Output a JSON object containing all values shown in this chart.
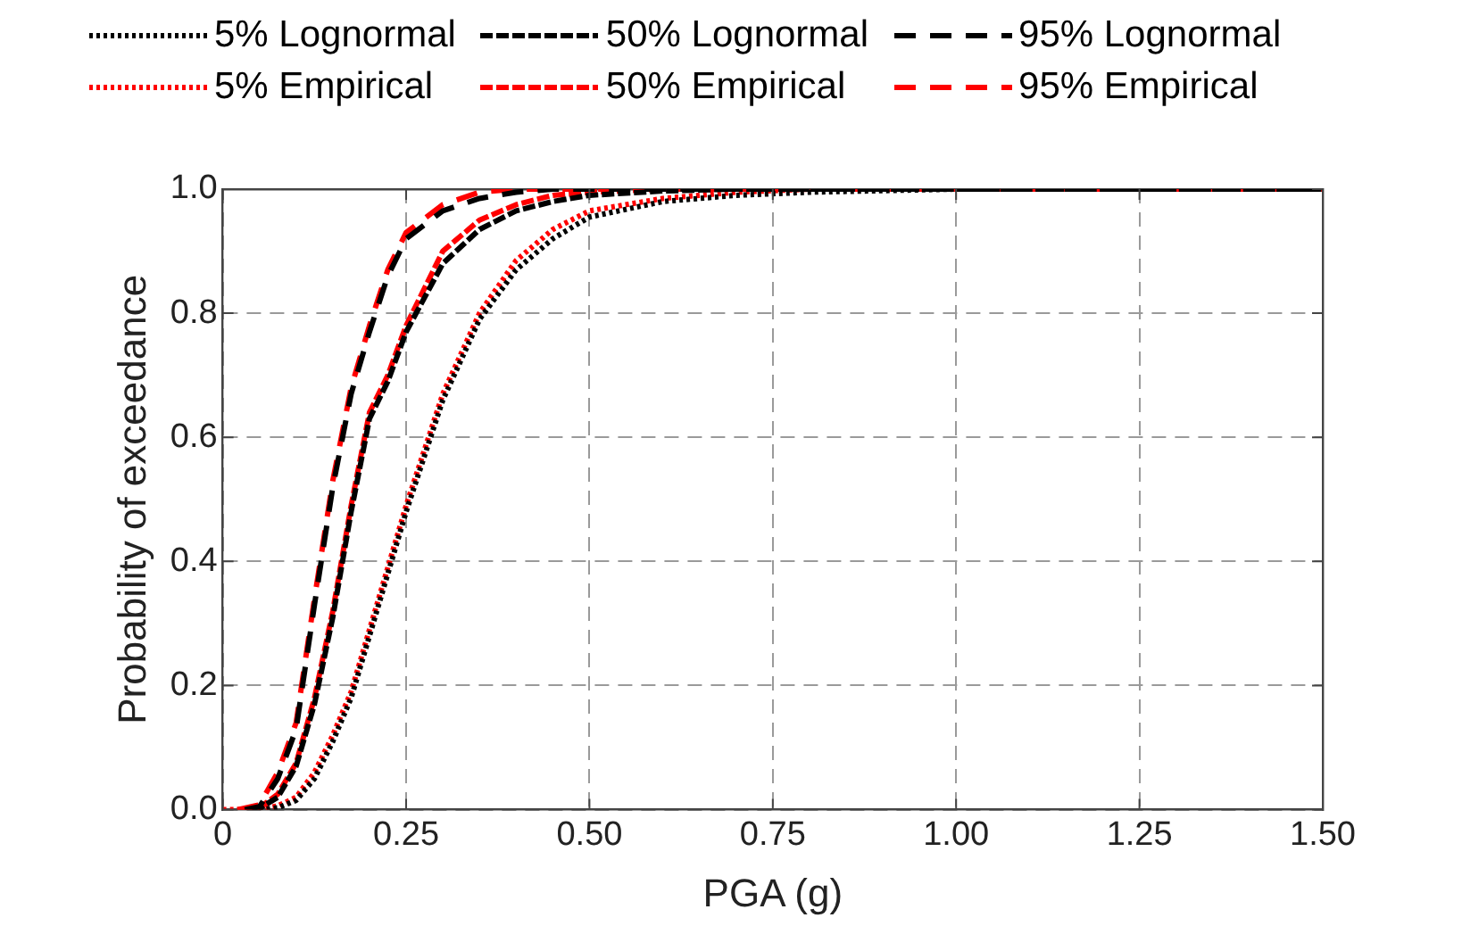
{
  "chart_data": {
    "type": "line",
    "xlabel": "PGA (g)",
    "ylabel": "Probability of exceedance",
    "xlim": [
      0,
      1.5
    ],
    "ylim": [
      0,
      1
    ],
    "xticks": [
      0,
      {
        "value": 0.25,
        "label": "0.25"
      },
      {
        "value": 0.5,
        "label": "0.50"
      },
      {
        "value": 0.75,
        "label": "0.75"
      },
      {
        "value": 1,
        "label": "1.00"
      },
      {
        "value": 1.25,
        "label": "1.25"
      },
      {
        "value": 1.5,
        "label": "1.50"
      }
    ],
    "yticks": [
      {
        "value": 0,
        "label": "0.0"
      },
      {
        "value": 0.2,
        "label": "0.2"
      },
      {
        "value": 0.4,
        "label": "0.4"
      },
      {
        "value": 0.6,
        "label": "0.6"
      },
      {
        "value": 0.8,
        "label": "0.8"
      },
      {
        "value": 1,
        "label": "1.0"
      }
    ],
    "grid": true,
    "legend": "top",
    "marker": "none",
    "x": [
      0,
      0.025,
      0.05,
      0.075,
      0.1,
      0.125,
      0.15,
      0.175,
      0.2,
      0.225,
      0.25,
      0.3,
      0.35,
      0.4,
      0.45,
      0.5,
      0.6,
      0.7,
      0.8,
      1.0,
      1.25,
      1.5
    ],
    "series": [
      {
        "name": "5% Lognormal",
        "color": "#000000",
        "line_style": "dotted",
        "x": [
          0.05,
          0.075,
          0.1,
          0.125,
          0.15,
          0.175,
          0.2,
          0.225,
          0.25,
          0.3,
          0.35,
          0.4,
          0.45,
          0.5,
          0.6,
          0.7,
          0.8,
          1.0,
          1.25,
          1.5
        ],
        "values": [
          0,
          0.003,
          0.015,
          0.05,
          0.11,
          0.18,
          0.28,
          0.38,
          0.48,
          0.66,
          0.79,
          0.87,
          0.92,
          0.955,
          0.98,
          0.99,
          0.995,
          1,
          1,
          1
        ]
      },
      {
        "name": "50% Lognormal",
        "color": "#000000",
        "line_style": "dashed",
        "x": [
          0.04,
          0.05,
          0.075,
          0.1,
          0.125,
          0.15,
          0.175,
          0.2,
          0.225,
          0.25,
          0.3,
          0.35,
          0.4,
          0.45,
          0.5,
          0.6,
          0.7,
          0.8,
          1.0,
          1.25,
          1.5
        ],
        "values": [
          0,
          0.002,
          0.02,
          0.07,
          0.17,
          0.31,
          0.48,
          0.63,
          0.69,
          0.77,
          0.88,
          0.935,
          0.965,
          0.98,
          0.99,
          0.997,
          1,
          1,
          1,
          1,
          1
        ]
      },
      {
        "name": "95% Lognormal",
        "color": "#000000",
        "line_style": "dashed",
        "x": [
          0.03,
          0.05,
          0.075,
          0.1,
          0.125,
          0.15,
          0.175,
          0.2,
          0.225,
          0.25,
          0.3,
          0.35,
          0.4,
          0.45,
          0.5,
          0.6,
          0.7,
          0.8,
          1.0,
          1.25,
          1.5
        ],
        "values": [
          0,
          0.005,
          0.05,
          0.13,
          0.33,
          0.52,
          0.67,
          0.77,
          0.86,
          0.92,
          0.965,
          0.985,
          0.995,
          1,
          1,
          1,
          1,
          1,
          1,
          1,
          1
        ]
      },
      {
        "name": "5% Empirical",
        "color": "#ff0000",
        "line_style": "dotted",
        "values": [
          0,
          0,
          0.001,
          0.006,
          0.02,
          0.06,
          0.12,
          0.19,
          0.29,
          0.39,
          0.49,
          0.67,
          0.8,
          0.885,
          0.935,
          0.965,
          0.985,
          0.995,
          1,
          1,
          1,
          1
        ]
      },
      {
        "name": "50% Empirical",
        "color": "#ff0000",
        "line_style": "dashed",
        "x": [
          0.025,
          0.05,
          0.075,
          0.1,
          0.125,
          0.15,
          0.175,
          0.2,
          0.225,
          0.25,
          0.3,
          0.35,
          0.4,
          0.45,
          0.5,
          0.6,
          0.7,
          0.8,
          1.0,
          1.25,
          1.5
        ],
        "values": [
          0,
          0.003,
          0.025,
          0.075,
          0.18,
          0.32,
          0.49,
          0.64,
          0.7,
          0.78,
          0.9,
          0.95,
          0.975,
          0.99,
          0.995,
          1,
          1,
          1,
          1,
          1,
          1
        ]
      },
      {
        "name": "95% Empirical",
        "color": "#ff0000",
        "line_style": "dashed",
        "x": [
          0.02,
          0.05,
          0.075,
          0.1,
          0.125,
          0.15,
          0.175,
          0.2,
          0.225,
          0.25,
          0.3,
          0.35,
          0.4,
          0.45,
          0.5,
          0.6,
          0.7,
          0.8,
          1.0,
          1.25,
          1.5
        ],
        "values": [
          0,
          0.008,
          0.06,
          0.14,
          0.34,
          0.53,
          0.68,
          0.78,
          0.87,
          0.93,
          0.975,
          0.995,
          1,
          1,
          1,
          1,
          1,
          1,
          1,
          1,
          1
        ]
      }
    ]
  }
}
